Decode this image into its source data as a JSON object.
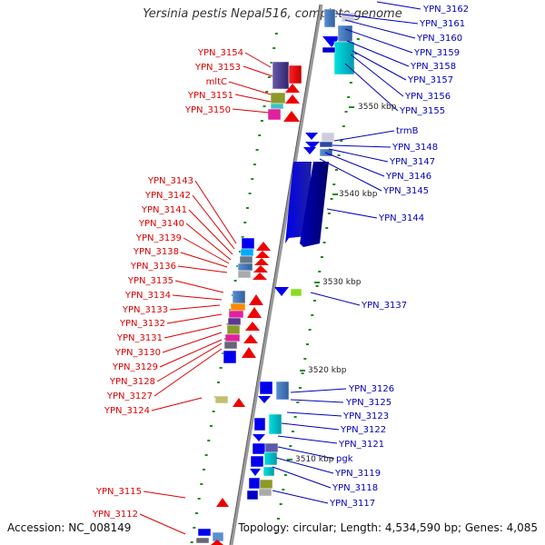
{
  "title": "Yersinia pestis Nepal516, complete genome",
  "accession": "Accession: NC_008149",
  "topology": "Topology: circular; Length: 4,534,590 bp; Genes: 4,085",
  "colors": {
    "left_label": "#dd0000",
    "right_label": "#0000bb",
    "backbone": "#999999",
    "tick": "#1a8a1a"
  },
  "ticks": [
    {
      "label": "3550 kbp"
    },
    {
      "label": "3540 kbp"
    },
    {
      "label": "3530 kbp"
    },
    {
      "label": "3520 kbp"
    },
    {
      "label": "3510 kbp"
    }
  ],
  "right_genes": [
    {
      "label": "YPN_3162"
    },
    {
      "label": "YPN_3161"
    },
    {
      "label": "YPN_3160"
    },
    {
      "label": "YPN_3159"
    },
    {
      "label": "YPN_3158"
    },
    {
      "label": "YPN_3157"
    },
    {
      "label": "YPN_3156"
    },
    {
      "label": "YPN_3155"
    },
    {
      "label": "trmB"
    },
    {
      "label": "YPN_3148"
    },
    {
      "label": "YPN_3147"
    },
    {
      "label": "YPN_3146"
    },
    {
      "label": "YPN_3145"
    },
    {
      "label": "YPN_3144"
    },
    {
      "label": "YPN_3137"
    },
    {
      "label": "YPN_3126"
    },
    {
      "label": "YPN_3125"
    },
    {
      "label": "YPN_3123"
    },
    {
      "label": "YPN_3122"
    },
    {
      "label": "YPN_3121"
    },
    {
      "label": "pgk"
    },
    {
      "label": "YPN_3119"
    },
    {
      "label": "YPN_3118"
    },
    {
      "label": "YPN_3117"
    }
  ],
  "left_genes": [
    {
      "label": "YPN_3154"
    },
    {
      "label": "YPN_3153"
    },
    {
      "label": "mltC"
    },
    {
      "label": "YPN_3151"
    },
    {
      "label": "YPN_3150"
    },
    {
      "label": "YPN_3143"
    },
    {
      "label": "YPN_3142"
    },
    {
      "label": "YPN_3141"
    },
    {
      "label": "YPN_3140"
    },
    {
      "label": "YPN_3139"
    },
    {
      "label": "YPN_3138"
    },
    {
      "label": "YPN_3136"
    },
    {
      "label": "YPN_3135"
    },
    {
      "label": "YPN_3134"
    },
    {
      "label": "YPN_3133"
    },
    {
      "label": "YPN_3132"
    },
    {
      "label": "YPN_3131"
    },
    {
      "label": "YPN_3130"
    },
    {
      "label": "YPN_3129"
    },
    {
      "label": "YPN_3128"
    },
    {
      "label": "YPN_3127"
    },
    {
      "label": "YPN_3124"
    },
    {
      "label": "YPN_3115"
    },
    {
      "label": "YPN_3112"
    }
  ]
}
